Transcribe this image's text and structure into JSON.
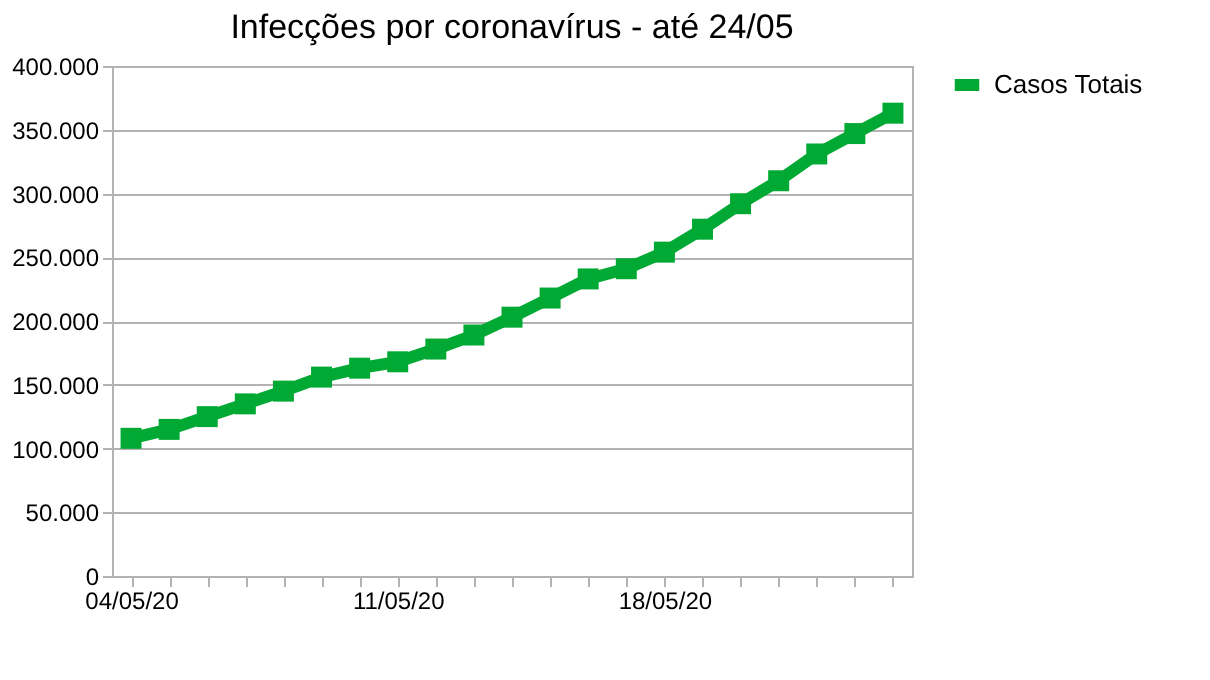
{
  "chart_data": {
    "type": "line",
    "title": "Infecções por coronavírus - até 24/05",
    "categories": [
      "04/05/20",
      null,
      null,
      null,
      null,
      null,
      null,
      "11/05/20",
      null,
      null,
      null,
      null,
      null,
      null,
      "18/05/20",
      null,
      null,
      null,
      null,
      null,
      null
    ],
    "series": [
      {
        "name": "Casos Totais",
        "color": "#00a933",
        "values": [
          108000,
          115000,
          125000,
          135000,
          145000,
          156000,
          163000,
          168000,
          178000,
          189000,
          203000,
          218000,
          233000,
          241000,
          254000,
          272000,
          292000,
          310000,
          331000,
          347000,
          363000
        ]
      }
    ],
    "ylim": [
      0,
      400000
    ],
    "yticks": [
      {
        "value": 0,
        "label": "0"
      },
      {
        "value": 50000,
        "label": "50.000"
      },
      {
        "value": 100000,
        "label": "100.000"
      },
      {
        "value": 150000,
        "label": "150.000"
      },
      {
        "value": 200000,
        "label": "200.000"
      },
      {
        "value": 250000,
        "label": "250.000"
      },
      {
        "value": 300000,
        "label": "300.000"
      },
      {
        "value": 350000,
        "label": "350.000"
      },
      {
        "value": 400000,
        "label": "400.000"
      }
    ],
    "grid": "y",
    "legend": "right",
    "marker": "square",
    "line_style": "solid"
  }
}
